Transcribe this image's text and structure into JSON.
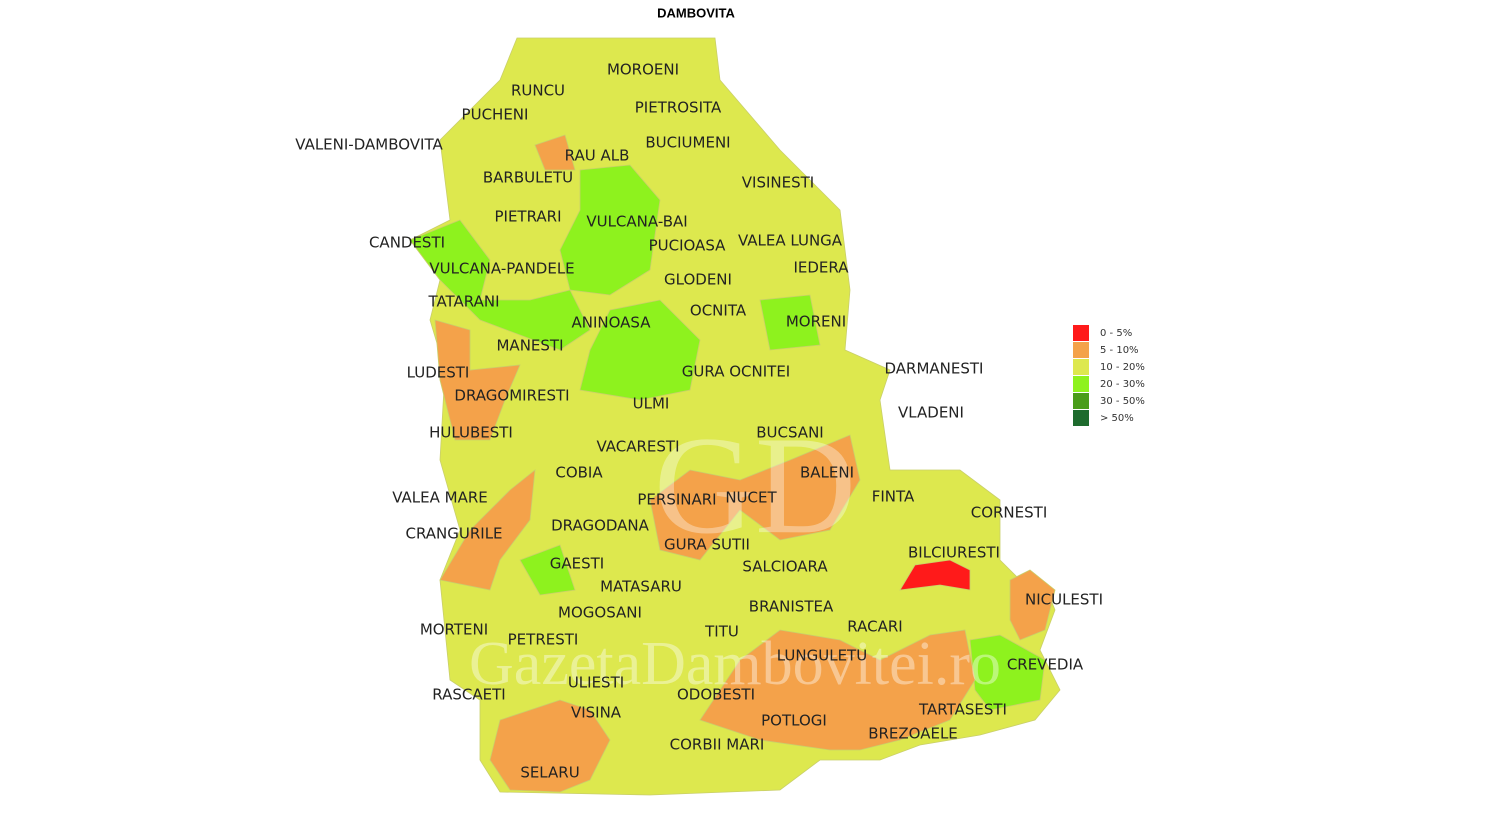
{
  "title": "DAMBOVITA",
  "legend": [
    {
      "label": "0 - 5%",
      "color": "#ff1a1a"
    },
    {
      "label": "5 - 10%",
      "color": "#f4a24a"
    },
    {
      "label": "10 - 20%",
      "color": "#dde84e"
    },
    {
      "label": "20 - 30%",
      "color": "#8ef21e"
    },
    {
      "label": "30 - 50%",
      "color": "#4a9d1a"
    },
    {
      "label": "> 50%",
      "color": "#1e6b2e"
    }
  ],
  "localities": [
    "MOROENI",
    "RUNCU",
    "PIETROSITA",
    "PUCHENI",
    "VALENI-DAMBOVITA",
    "BUCIUMENI",
    "RAU ALB",
    "BARBULETU",
    "VISINESTI",
    "PIETRARI",
    "VULCANA-BAI",
    "CANDESTI",
    "PUCIOASA",
    "VALEA LUNGA",
    "VULCANA-PANDELE",
    "IEDERA",
    "GLODENI",
    "TATARANI",
    "OCNITA",
    "ANINOASA",
    "MORENI",
    "MANESTI",
    "DARMANESTI",
    "LUDESTI",
    "GURA OCNITEI",
    "DRAGOMIRESTI",
    "ULMI",
    "VLADENI",
    "HULUBESTI",
    "BUCSANI",
    "VACARESTI",
    "COBIA",
    "BALENI",
    "VALEA MARE",
    "PERSINARI",
    "NUCET",
    "FINTA",
    "CORNESTI",
    "DRAGODANA",
    "CRANGURILE",
    "GURA SUTII",
    "BILCIURESTI",
    "GAESTI",
    "SALCIOARA",
    "MATASARU",
    "NICULESTI",
    "MOGOSANI",
    "BRANISTEA",
    "RACARI",
    "MORTENI",
    "PETRESTI",
    "TITU",
    "LUNGULETU",
    "CREVEDIA",
    "ULIESTI",
    "RASCAETI",
    "ODOBESTI",
    "TARTASESTI",
    "VISINA",
    "POTLOGI",
    "BREZOAELE",
    "CORBII MARI",
    "SELARU"
  ],
  "watermark": [
    "GD",
    "GazetaDambovitei.ro"
  ]
}
